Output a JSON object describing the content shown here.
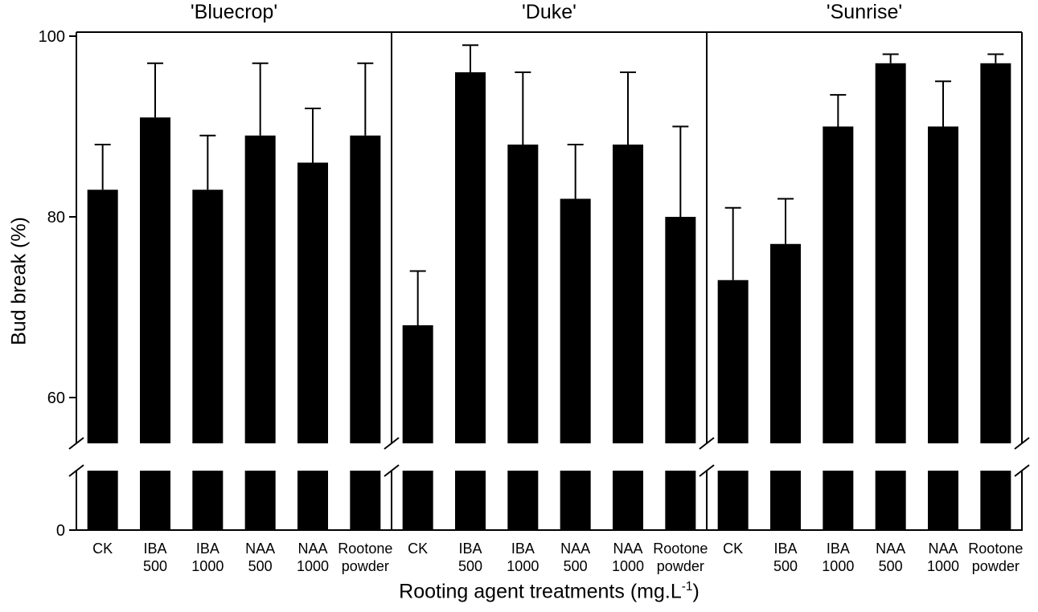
{
  "figure": {
    "xlabel": {
      "prefix": "Rooting agent treatments (mg.L",
      "sup": "-1",
      "suffix": ")"
    }
  },
  "chart_data": {
    "type": "bar",
    "title": "",
    "ylabel": "Bud break (%)",
    "xlabel": "Rooting agent treatments (mg.L^-1)",
    "ylim": [
      0,
      100
    ],
    "yticks": [
      0,
      60,
      80,
      100
    ],
    "axis_break": true,
    "grid": false,
    "bar_color": "#000000",
    "error_bars": "upper only, with caps",
    "categories": [
      "CK",
      "IBA 500",
      "IBA 1000",
      "NAA 500",
      "NAA 1000",
      "Rootone powder"
    ],
    "category_label_lines": [
      [
        "CK"
      ],
      [
        "IBA",
        "500"
      ],
      [
        "IBA",
        "1000"
      ],
      [
        "NAA",
        "500"
      ],
      [
        "NAA",
        "1000"
      ],
      [
        "Rootone",
        "powder"
      ]
    ],
    "panels": [
      {
        "title": "'Bluecrop'",
        "values": [
          83,
          91,
          83,
          89,
          86,
          89
        ],
        "errors": [
          5,
          6,
          6,
          8,
          6,
          8
        ]
      },
      {
        "title": "'Duke'",
        "values": [
          68,
          96,
          88,
          82,
          88,
          80
        ],
        "errors": [
          6,
          3,
          8,
          6,
          8,
          10
        ]
      },
      {
        "title": "'Sunrise'",
        "values": [
          73,
          77,
          90,
          97,
          90,
          97
        ],
        "errors": [
          8,
          5,
          3.5,
          1,
          5,
          1
        ]
      }
    ]
  }
}
